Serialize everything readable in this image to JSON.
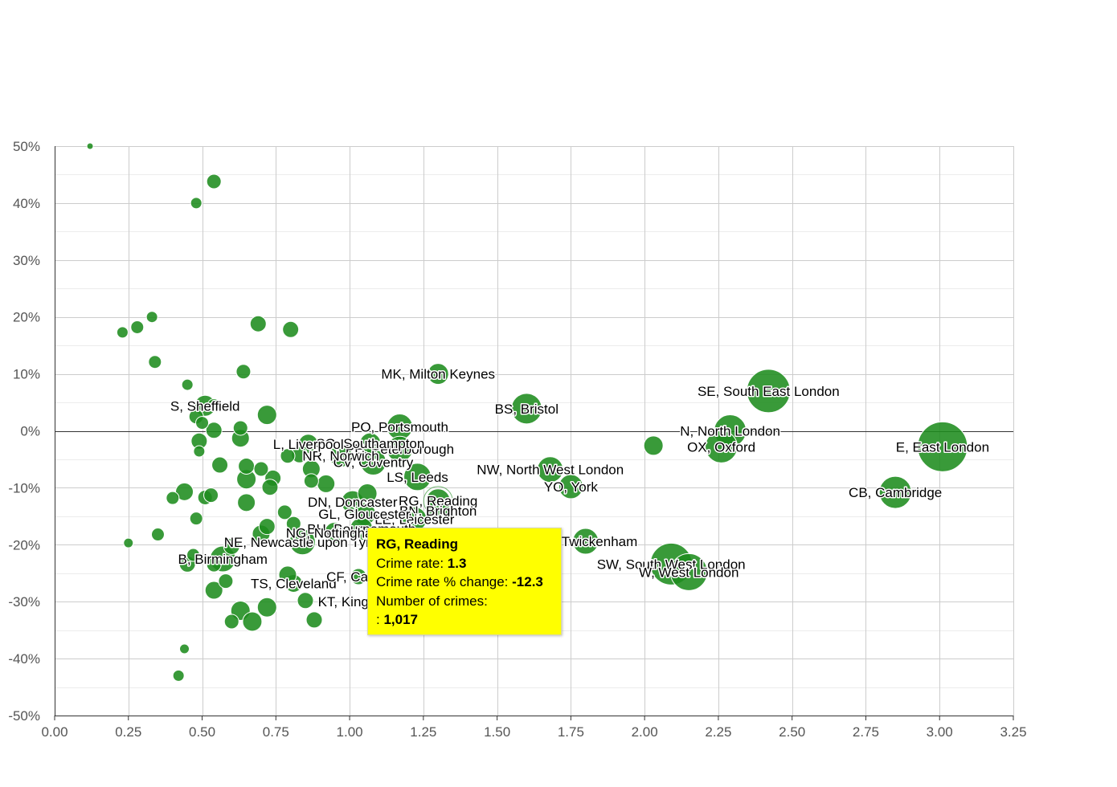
{
  "chart_data": {
    "type": "scatter",
    "title": "",
    "xlabel": "",
    "ylabel": "",
    "xlim": [
      0,
      3.25
    ],
    "ylim": [
      -50,
      50
    ],
    "x_ticks": [
      "0.00",
      "0.25",
      "0.50",
      "0.75",
      "1.00",
      "1.25",
      "1.50",
      "1.75",
      "2.00",
      "2.25",
      "2.50",
      "2.75",
      "3.00",
      "3.25"
    ],
    "y_ticks": [
      "50%",
      "40%",
      "30%",
      "20%",
      "10%",
      "0%",
      "-10%",
      "-20%",
      "-30%",
      "-40%",
      "-50%"
    ],
    "grid": true,
    "bubble_color": "#1e8c1e",
    "points": [
      {
        "label": "E, East London",
        "x": 3.01,
        "y": -2.8,
        "r": 31
      },
      {
        "label": "SE, South East London",
        "x": 2.42,
        "y": 7.0,
        "r": 27
      },
      {
        "label": "N, North London",
        "x": 2.29,
        "y": 0.0,
        "r": 20
      },
      {
        "label": "OX, Oxford",
        "x": 2.26,
        "y": -2.8,
        "r": 20
      },
      {
        "label": "CB, Cambridge",
        "x": 2.85,
        "y": -10.8,
        "r": 20
      },
      {
        "label": "SW, South West London",
        "x": 2.09,
        "y": -23.4,
        "r": 26
      },
      {
        "label": "W, West London",
        "x": 2.15,
        "y": -24.8,
        "r": 23
      },
      {
        "label": "",
        "x": 2.03,
        "y": -2.6,
        "r": 12
      },
      {
        "label": "NW, North West London",
        "x": 1.68,
        "y": -6.8,
        "r": 16
      },
      {
        "label": "YO, York",
        "x": 1.75,
        "y": -9.8,
        "r": 15
      },
      {
        "label": "TW, Twickenham",
        "x": 1.8,
        "y": -19.4,
        "r": 16
      },
      {
        "label": "BS, Bristol",
        "x": 1.6,
        "y": 3.9,
        "r": 19
      },
      {
        "label": "MK, Milton Keynes",
        "x": 1.3,
        "y": 10.0,
        "r": 13
      },
      {
        "label": "PO, Portsmouth",
        "x": 1.17,
        "y": 0.7,
        "r": 16
      },
      {
        "label": "PE, Peterborough",
        "x": 1.17,
        "y": -3.2,
        "r": 16
      },
      {
        "label": "LS, Leeds",
        "x": 1.23,
        "y": -8.1,
        "r": 17
      },
      {
        "label": "RG, Reading",
        "x": 1.3,
        "y": -12.3,
        "r": 15
      },
      {
        "label": "BN, Brighton",
        "x": 1.3,
        "y": -14.0,
        "r": 15
      },
      {
        "label": "LE, Leicester",
        "x": 1.22,
        "y": -15.5,
        "r": 15
      },
      {
        "label": "DN, Doncaster",
        "x": 1.01,
        "y": -12.5,
        "r": 14
      },
      {
        "label": "SO, Southampton",
        "x": 1.07,
        "y": -2.2,
        "r": 13
      },
      {
        "label": "CV, Coventry",
        "x": 1.08,
        "y": -5.5,
        "r": 16
      },
      {
        "label": "NR, Norwich",
        "x": 0.97,
        "y": -4.4,
        "r": 14
      },
      {
        "label": "GL, Gloucester",
        "x": 1.05,
        "y": -14.6,
        "r": 14
      },
      {
        "label": "BH, Bournemouth",
        "x": 1.04,
        "y": -17.2,
        "r": 14
      },
      {
        "label": "L, Liverpool",
        "x": 0.86,
        "y": -2.3,
        "r": 12
      },
      {
        "label": "NE, Newcastle upon Tyne",
        "x": 0.84,
        "y": -19.5,
        "r": 16
      },
      {
        "label": "NG, Nottingham",
        "x": 0.95,
        "y": -17.9,
        "r": 13
      },
      {
        "label": "TS, Cleveland",
        "x": 0.81,
        "y": -26.8,
        "r": 11
      },
      {
        "label": "CF, Cardiff",
        "x": 1.03,
        "y": -25.6,
        "r": 10
      },
      {
        "label": "KT, Kingston upon Thames",
        "x": 1.17,
        "y": -30.0,
        "r": 11
      },
      {
        "label": "B, Birmingham",
        "x": 0.57,
        "y": -22.5,
        "r": 16
      },
      {
        "label": "S, Sheffield",
        "x": 0.51,
        "y": 4.4,
        "r": 13
      },
      {
        "label": "",
        "x": 0.12,
        "y": 50.0,
        "r": 4
      },
      {
        "label": "",
        "x": 0.54,
        "y": 43.8,
        "r": 9
      },
      {
        "label": "",
        "x": 0.48,
        "y": 40.0,
        "r": 7
      },
      {
        "label": "",
        "x": 0.33,
        "y": 20.0,
        "r": 7
      },
      {
        "label": "",
        "x": 0.28,
        "y": 18.2,
        "r": 8
      },
      {
        "label": "",
        "x": 0.23,
        "y": 17.3,
        "r": 7
      },
      {
        "label": "",
        "x": 0.69,
        "y": 18.8,
        "r": 10
      },
      {
        "label": "",
        "x": 0.8,
        "y": 17.8,
        "r": 10
      },
      {
        "label": "",
        "x": 0.34,
        "y": 12.1,
        "r": 8
      },
      {
        "label": "",
        "x": 0.64,
        "y": 10.4,
        "r": 9
      },
      {
        "label": "",
        "x": 0.45,
        "y": 8.1,
        "r": 7
      },
      {
        "label": "",
        "x": 0.54,
        "y": 4.5,
        "r": 8
      },
      {
        "label": "",
        "x": 0.72,
        "y": 2.8,
        "r": 12
      },
      {
        "label": "",
        "x": 0.48,
        "y": 2.5,
        "r": 9
      },
      {
        "label": "",
        "x": 0.5,
        "y": 1.4,
        "r": 8
      },
      {
        "label": "",
        "x": 0.63,
        "y": 0.5,
        "r": 9
      },
      {
        "label": "",
        "x": 0.54,
        "y": 0.1,
        "r": 10
      },
      {
        "label": "",
        "x": 0.63,
        "y": -1.3,
        "r": 11
      },
      {
        "label": "",
        "x": 0.49,
        "y": -1.8,
        "r": 10
      },
      {
        "label": "",
        "x": 0.49,
        "y": -3.6,
        "r": 7
      },
      {
        "label": "",
        "x": 0.56,
        "y": -6.0,
        "r": 10
      },
      {
        "label": "",
        "x": 0.65,
        "y": -6.2,
        "r": 10
      },
      {
        "label": "",
        "x": 0.7,
        "y": -6.7,
        "r": 9
      },
      {
        "label": "",
        "x": 0.79,
        "y": -4.4,
        "r": 9
      },
      {
        "label": "",
        "x": 0.83,
        "y": -4.2,
        "r": 10
      },
      {
        "label": "",
        "x": 0.87,
        "y": -6.7,
        "r": 11
      },
      {
        "label": "",
        "x": 0.65,
        "y": -8.5,
        "r": 12
      },
      {
        "label": "",
        "x": 0.74,
        "y": -8.3,
        "r": 10
      },
      {
        "label": "",
        "x": 0.73,
        "y": -9.9,
        "r": 10
      },
      {
        "label": "",
        "x": 0.87,
        "y": -8.8,
        "r": 9
      },
      {
        "label": "",
        "x": 0.92,
        "y": -9.3,
        "r": 11
      },
      {
        "label": "",
        "x": 0.44,
        "y": -10.7,
        "r": 11
      },
      {
        "label": "",
        "x": 0.4,
        "y": -11.8,
        "r": 8
      },
      {
        "label": "",
        "x": 0.51,
        "y": -11.7,
        "r": 9
      },
      {
        "label": "",
        "x": 0.53,
        "y": -11.3,
        "r": 9
      },
      {
        "label": "",
        "x": 0.65,
        "y": -12.6,
        "r": 11
      },
      {
        "label": "",
        "x": 0.78,
        "y": -14.3,
        "r": 9
      },
      {
        "label": "",
        "x": 0.48,
        "y": -15.4,
        "r": 8
      },
      {
        "label": "",
        "x": 0.81,
        "y": -16.3,
        "r": 9
      },
      {
        "label": "",
        "x": 0.72,
        "y": -16.8,
        "r": 10
      },
      {
        "label": "",
        "x": 0.7,
        "y": -18.1,
        "r": 11
      },
      {
        "label": "",
        "x": 0.35,
        "y": -18.2,
        "r": 8
      },
      {
        "label": "",
        "x": 0.25,
        "y": -19.7,
        "r": 6
      },
      {
        "label": "",
        "x": 0.47,
        "y": -21.8,
        "r": 8
      },
      {
        "label": "",
        "x": 0.6,
        "y": -20.3,
        "r": 10
      },
      {
        "label": "",
        "x": 0.45,
        "y": -23.4,
        "r": 10
      },
      {
        "label": "",
        "x": 0.54,
        "y": -23.5,
        "r": 9
      },
      {
        "label": "",
        "x": 0.79,
        "y": -25.3,
        "r": 11
      },
      {
        "label": "",
        "x": 0.58,
        "y": -26.4,
        "r": 9
      },
      {
        "label": "",
        "x": 0.54,
        "y": -28.0,
        "r": 11
      },
      {
        "label": "",
        "x": 0.85,
        "y": -29.8,
        "r": 10
      },
      {
        "label": "",
        "x": 0.63,
        "y": -31.6,
        "r": 12
      },
      {
        "label": "",
        "x": 0.72,
        "y": -31.0,
        "r": 12
      },
      {
        "label": "",
        "x": 0.6,
        "y": -33.5,
        "r": 9
      },
      {
        "label": "",
        "x": 0.67,
        "y": -33.5,
        "r": 12
      },
      {
        "label": "",
        "x": 0.88,
        "y": -33.2,
        "r": 10
      },
      {
        "label": "",
        "x": 0.44,
        "y": -38.3,
        "r": 6
      },
      {
        "label": "",
        "x": 0.42,
        "y": -43.0,
        "r": 7
      },
      {
        "label": "",
        "x": 1.06,
        "y": -11.0,
        "r": 12
      }
    ],
    "tooltip": {
      "title": "RG, Reading",
      "line1_label": "Crime rate: ",
      "line1_value": "1.3",
      "line2_label": "Crime rate % change: ",
      "line2_value": "-12.3",
      "line3_label": "Number of crimes:",
      "line4_label": ": ",
      "line4_value": "1,017"
    }
  }
}
